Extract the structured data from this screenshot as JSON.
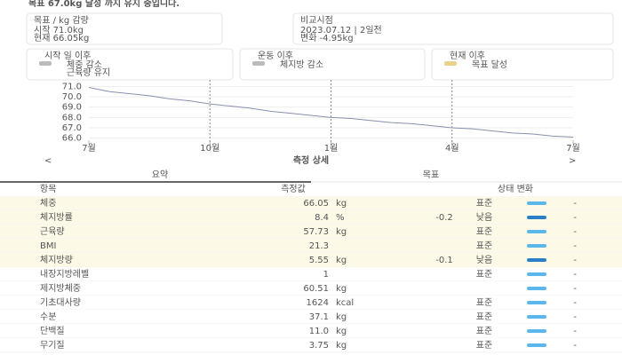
{
  "header": {
    "title": "목표 67.0kg 달성 까지 유지 중입니다."
  },
  "cards_top": [
    {
      "title": "목표 / kg 감량",
      "lines": [
        "시작 71.0kg",
        "현재 66.05kg"
      ]
    },
    {
      "title": "비교시점",
      "lines": [
        "2023.07.12 | 2일전",
        "변화 -4.95kg"
      ]
    }
  ],
  "cards_mid": [
    {
      "title": "시작 일 이후",
      "lines": [
        "체중 감소",
        "근육량 유지"
      ]
    },
    {
      "title": "운동 이후",
      "lines": [
        "체지방 감소"
      ]
    },
    {
      "title": "현재 이후",
      "lines": [
        "목표 달성"
      ]
    }
  ],
  "chart": {
    "type": "line",
    "color": "#8a8fb0",
    "x": [
      0,
      0.5,
      1,
      1.5,
      2,
      2.5,
      3,
      3.5,
      4,
      4.5,
      5,
      5.5,
      6,
      6.5,
      7,
      7.5,
      8,
      8.5,
      9,
      9.5,
      10,
      10.5,
      11,
      11.5,
      12
    ],
    "values": [
      70.9,
      70.5,
      70.3,
      70.1,
      69.8,
      69.6,
      69.3,
      69.1,
      68.9,
      68.6,
      68.4,
      68.2,
      68.0,
      67.9,
      67.7,
      67.5,
      67.4,
      67.2,
      67.0,
      66.9,
      66.7,
      66.5,
      66.4,
      66.2,
      66.1
    ],
    "xlim": [
      0,
      12
    ],
    "ylim": [
      65.8,
      71.2
    ],
    "xticks": [
      {
        "value": 0,
        "label": "7월"
      },
      {
        "value": 3,
        "label": "10월"
      },
      {
        "value": 6,
        "label": "1월"
      },
      {
        "value": 9,
        "label": "4월"
      },
      {
        "value": 12,
        "label": "7월"
      }
    ],
    "yticks": [
      {
        "value": 71,
        "label": "71.0"
      },
      {
        "value": 70,
        "label": "70.0"
      },
      {
        "value": 69,
        "label": "69.0"
      },
      {
        "value": 68,
        "label": "68.0"
      },
      {
        "value": 67,
        "label": "67.0"
      },
      {
        "value": 66,
        "label": "66.0"
      }
    ],
    "markers": [
      3,
      6,
      9
    ]
  },
  "nav": {
    "prev": "<",
    "title": "측정 상세",
    "next": ">"
  },
  "tabs": [
    "요약",
    "목표"
  ],
  "table": {
    "columns": [
      "항목",
      "측정값",
      "상태 변화"
    ],
    "rows": [
      {
        "name": "체중",
        "value": "66.05",
        "unit": "kg",
        "level": "표준",
        "trend": "-",
        "highlight": true,
        "bar": "#5bb8ea"
      },
      {
        "name": "체지방률",
        "value": "8.4",
        "unit": "%",
        "change": "-0.2",
        "level": "낮음",
        "trend": "-",
        "highlight": true,
        "bar": "#2a7fc9"
      },
      {
        "name": "근육량",
        "value": "57.73",
        "unit": "kg",
        "level": "표준",
        "trend": "-",
        "highlight": true,
        "bar": "#5bb8ea"
      },
      {
        "name": "BMI",
        "value": "21.3",
        "level": "표준",
        "trend": "-",
        "highlight": true,
        "bar": "#5bb8ea"
      },
      {
        "name": "체지방량",
        "value": "5.55",
        "unit": "kg",
        "change": "-0.1",
        "level": "낮음",
        "trend": "-",
        "highlight": true,
        "bar": "#2a7fc9"
      },
      {
        "name": "내장지방레벨",
        "value": "1",
        "level": "표준",
        "trend": "-",
        "highlight": false,
        "bar": "#5bb8ea"
      },
      {
        "name": "제지방체중",
        "value": "60.51",
        "unit": "kg",
        "trend": "-",
        "highlight": false,
        "bar": "#5bb8ea"
      },
      {
        "name": "기초대사량",
        "value": "1624",
        "unit": "kcal",
        "level": "표준",
        "trend": "-",
        "highlight": false,
        "bar": "#5bb8ea"
      },
      {
        "name": "수분",
        "value": "37.1",
        "unit": "kg",
        "level": "표준",
        "trend": "-",
        "highlight": false,
        "bar": "#5bb8ea"
      },
      {
        "name": "단백질",
        "value": "11.0",
        "unit": "kg",
        "level": "표준",
        "trend": "-",
        "highlight": false,
        "bar": "#5bb8ea"
      },
      {
        "name": "무기질",
        "value": "3.75",
        "unit": "kg",
        "level": "표준",
        "trend": "-",
        "highlight": false,
        "bar": "#5bb8ea"
      }
    ]
  }
}
